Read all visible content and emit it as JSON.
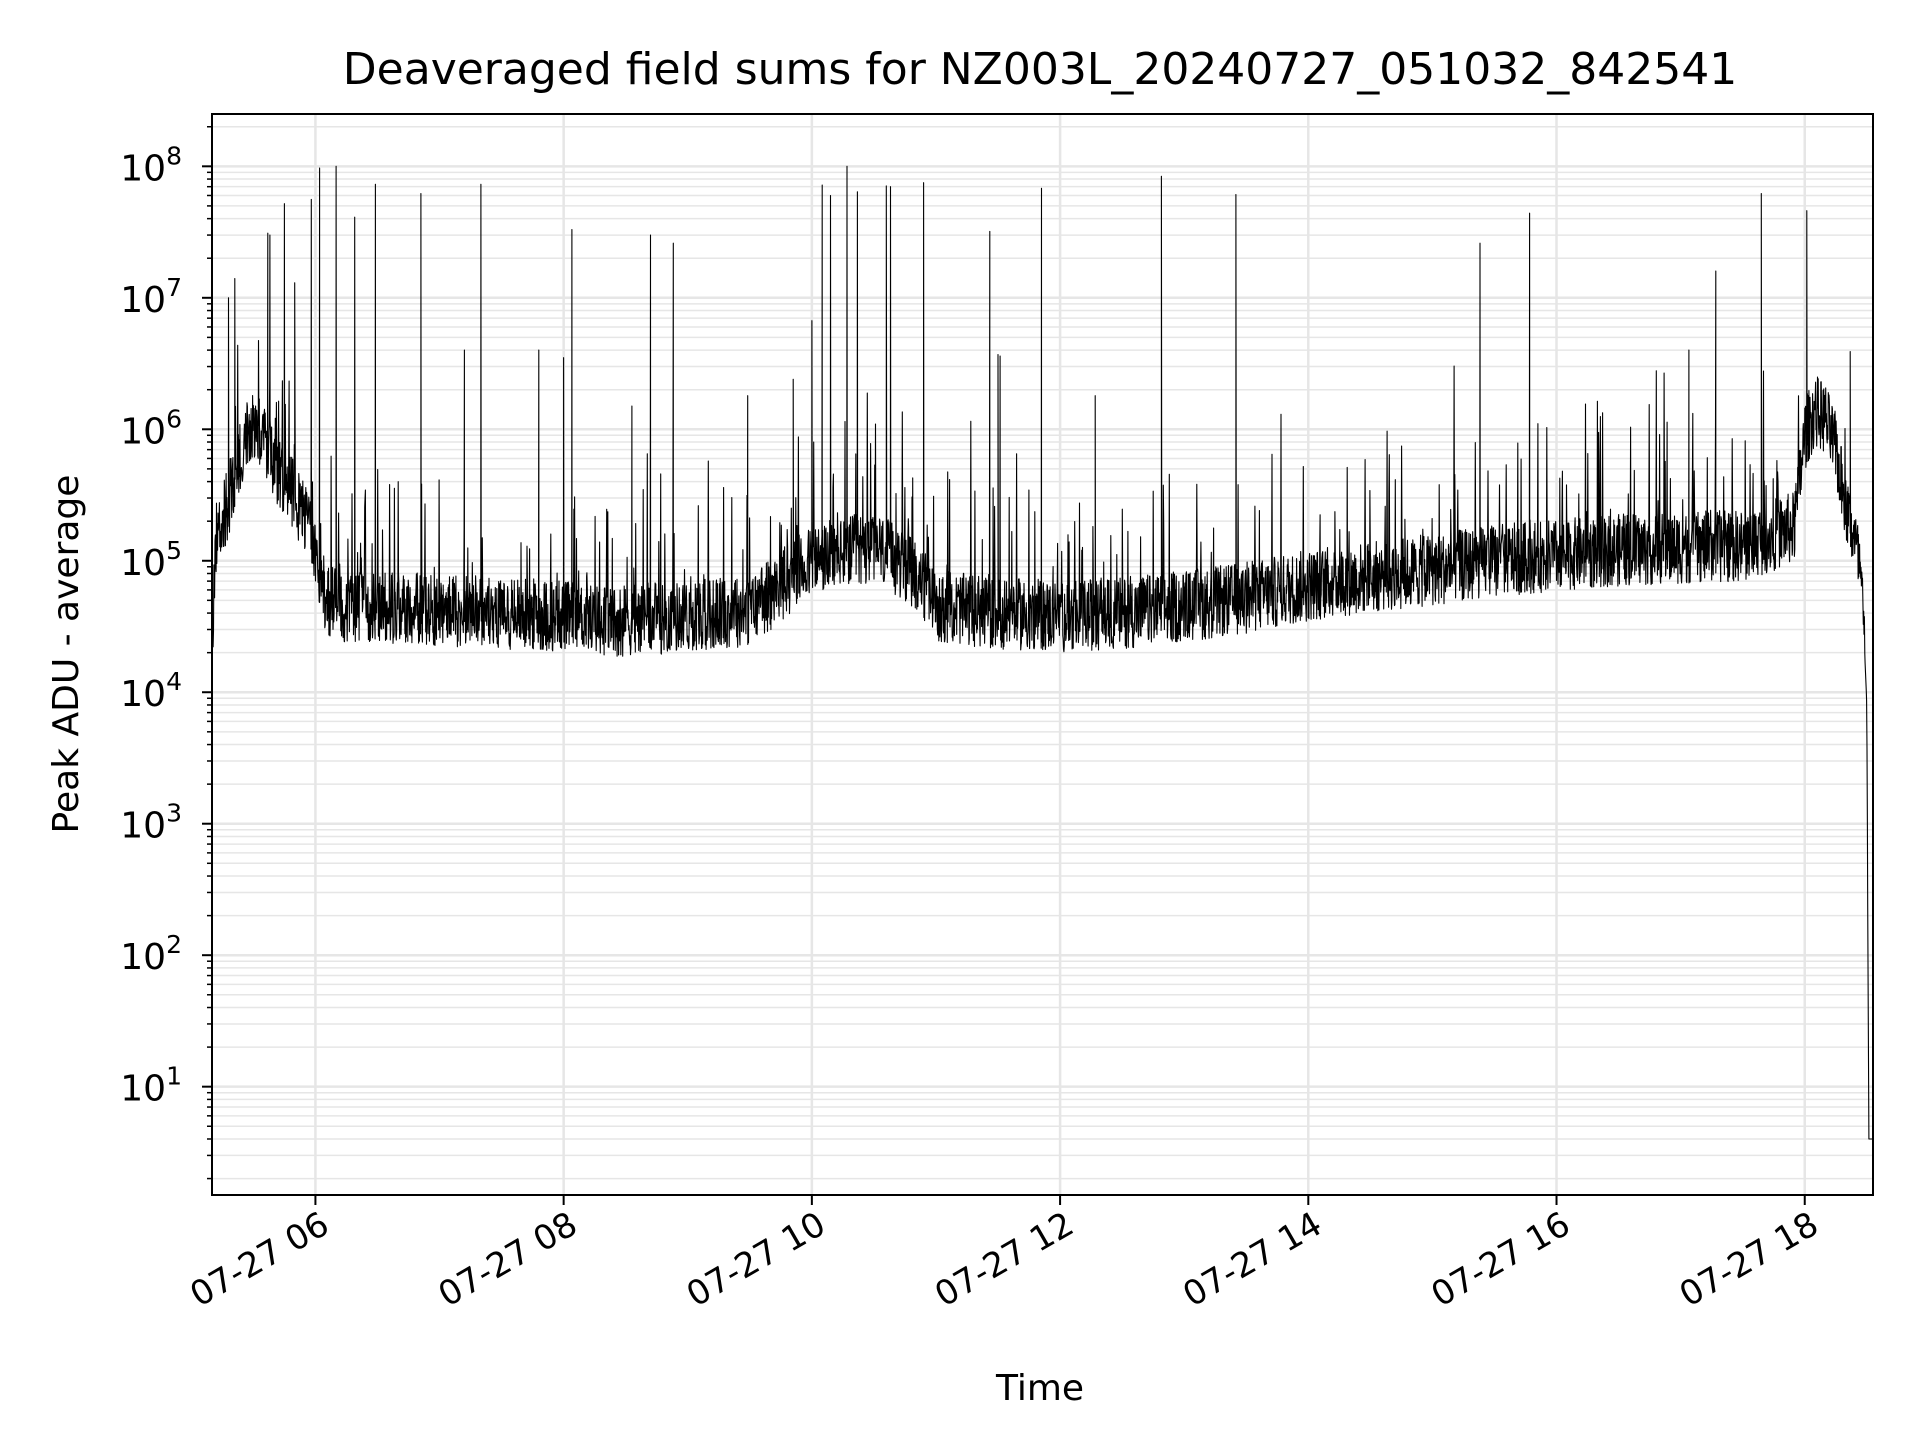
{
  "chart_data": {
    "type": "line",
    "title": "Deaveraged field sums for NZ003L_20240727_051032_842541",
    "xlabel": "Time",
    "ylabel": "Peak ADU - average",
    "yscale": "log",
    "xlim": [
      "2024-07-27 05:10",
      "2024-07-27 18:33"
    ],
    "ylim": [
      1.5,
      250000000.0
    ],
    "x_ticks": [
      {
        "t": "2024-07-27 06:00",
        "label": "07-27 06"
      },
      {
        "t": "2024-07-27 08:00",
        "label": "07-27 08"
      },
      {
        "t": "2024-07-27 10:00",
        "label": "07-27 10"
      },
      {
        "t": "2024-07-27 12:00",
        "label": "07-27 12"
      },
      {
        "t": "2024-07-27 14:00",
        "label": "07-27 14"
      },
      {
        "t": "2024-07-27 16:00",
        "label": "07-27 16"
      },
      {
        "t": "2024-07-27 18:00",
        "label": "07-27 18"
      }
    ],
    "y_ticks": [
      {
        "v": 10,
        "base": "10",
        "exp": "1"
      },
      {
        "v": 100,
        "base": "10",
        "exp": "2"
      },
      {
        "v": 1000,
        "base": "10",
        "exp": "3"
      },
      {
        "v": 10000,
        "base": "10",
        "exp": "4"
      },
      {
        "v": 100000,
        "base": "10",
        "exp": "5"
      },
      {
        "v": 1000000,
        "base": "10",
        "exp": "6"
      },
      {
        "v": 10000000,
        "base": "10",
        "exp": "7"
      },
      {
        "v": 100000000,
        "base": "10",
        "exp": "8"
      }
    ],
    "grid": "major and minor",
    "line_color": "#000000",
    "grid_color": "#e6e6e6",
    "baseline": [
      [
        "2024-07-27 05:10",
        20000
      ],
      [
        "2024-07-27 05:12",
        150000
      ],
      [
        "2024-07-27 05:17",
        250000
      ],
      [
        "2024-07-27 05:22",
        500000
      ],
      [
        "2024-07-27 05:26",
        900000
      ],
      [
        "2024-07-27 05:30",
        1200000
      ],
      [
        "2024-07-27 05:35",
        800000
      ],
      [
        "2024-07-27 05:40",
        550000
      ],
      [
        "2024-07-27 05:45",
        400000
      ],
      [
        "2024-07-27 05:50",
        300000
      ],
      [
        "2024-07-27 05:55",
        220000
      ],
      [
        "2024-07-27 06:00",
        110000
      ],
      [
        "2024-07-27 06:05",
        50000
      ],
      [
        "2024-07-27 06:15",
        45000
      ],
      [
        "2024-07-27 06:30",
        45000
      ],
      [
        "2024-07-27 07:00",
        42000
      ],
      [
        "2024-07-27 07:30",
        40000
      ],
      [
        "2024-07-27 08:00",
        38000
      ],
      [
        "2024-07-27 08:30",
        35000
      ],
      [
        "2024-07-27 09:00",
        38000
      ],
      [
        "2024-07-27 09:30",
        42000
      ],
      [
        "2024-07-27 10:00",
        100000
      ],
      [
        "2024-07-27 10:30",
        130000
      ],
      [
        "2024-07-27 10:50",
        80000
      ],
      [
        "2024-07-27 11:00",
        45000
      ],
      [
        "2024-07-27 11:30",
        40000
      ],
      [
        "2024-07-27 12:00",
        38000
      ],
      [
        "2024-07-27 12:30",
        40000
      ],
      [
        "2024-07-27 13:00",
        45000
      ],
      [
        "2024-07-27 13:30",
        52000
      ],
      [
        "2024-07-27 14:00",
        65000
      ],
      [
        "2024-07-27 14:30",
        75000
      ],
      [
        "2024-07-27 15:00",
        85000
      ],
      [
        "2024-07-27 15:30",
        100000
      ],
      [
        "2024-07-27 16:00",
        110000
      ],
      [
        "2024-07-27 16:30",
        120000
      ],
      [
        "2024-07-27 17:00",
        125000
      ],
      [
        "2024-07-27 17:30",
        130000
      ],
      [
        "2024-07-27 17:55",
        180000
      ],
      [
        "2024-07-27 18:00",
        900000
      ],
      [
        "2024-07-27 18:05",
        1400000
      ],
      [
        "2024-07-27 18:10",
        1200000
      ],
      [
        "2024-07-27 18:15",
        700000
      ],
      [
        "2024-07-27 18:20",
        250000
      ],
      [
        "2024-07-27 18:24",
        150000
      ],
      [
        "2024-07-27 18:27",
        80000
      ],
      [
        "2024-07-27 18:29",
        20000
      ],
      [
        "2024-07-27 18:30",
        8000
      ],
      [
        "2024-07-27 18:31",
        4
      ],
      [
        "2024-07-27 18:33",
        4
      ]
    ],
    "spikes": [
      [
        "2024-07-27 05:18",
        10000000
      ],
      [
        "2024-07-27 05:21",
        14000000
      ],
      [
        "2024-07-27 05:37",
        31000000
      ],
      [
        "2024-07-27 05:38",
        30000000
      ],
      [
        "2024-07-27 05:45",
        52000000
      ],
      [
        "2024-07-27 05:50",
        13000000
      ],
      [
        "2024-07-27 05:58",
        56000000
      ],
      [
        "2024-07-27 06:02",
        97000000
      ],
      [
        "2024-07-27 06:10",
        100000000
      ],
      [
        "2024-07-27 06:19",
        41000000
      ],
      [
        "2024-07-27 06:29",
        73000000
      ],
      [
        "2024-07-27 06:51",
        62000000
      ],
      [
        "2024-07-27 07:12",
        4000000
      ],
      [
        "2024-07-27 07:20",
        73000000
      ],
      [
        "2024-07-27 07:48",
        4000000
      ],
      [
        "2024-07-27 08:00",
        3500000
      ],
      [
        "2024-07-27 08:04",
        33000000
      ],
      [
        "2024-07-27 08:33",
        1500000
      ],
      [
        "2024-07-27 08:42",
        30000000
      ],
      [
        "2024-07-27 08:53",
        26000000
      ],
      [
        "2024-07-27 09:29",
        1800000
      ],
      [
        "2024-07-27 09:51",
        2400000
      ],
      [
        "2024-07-27 10:00",
        6700000
      ],
      [
        "2024-07-27 10:05",
        72000000
      ],
      [
        "2024-07-27 10:09",
        60000000
      ],
      [
        "2024-07-27 10:17",
        100000000
      ],
      [
        "2024-07-27 10:22",
        64000000
      ],
      [
        "2024-07-27 10:36",
        71000000
      ],
      [
        "2024-07-27 10:38",
        70000000
      ],
      [
        "2024-07-27 10:54",
        75000000
      ],
      [
        "2024-07-27 11:26",
        32000000
      ],
      [
        "2024-07-27 11:30",
        3700000
      ],
      [
        "2024-07-27 11:31",
        3600000
      ],
      [
        "2024-07-27 11:51",
        68000000
      ],
      [
        "2024-07-27 12:17",
        1800000
      ],
      [
        "2024-07-27 12:49",
        84000000
      ],
      [
        "2024-07-27 13:25",
        61000000
      ],
      [
        "2024-07-27 15:23",
        26000000
      ],
      [
        "2024-07-27 15:47",
        44000000
      ],
      [
        "2024-07-27 17:04",
        4000000
      ],
      [
        "2024-07-27 17:17",
        16000000
      ],
      [
        "2024-07-27 17:39",
        62000000
      ],
      [
        "2024-07-27 18:01",
        46000000
      ],
      [
        "2024-07-27 18:22",
        3900000
      ]
    ]
  }
}
